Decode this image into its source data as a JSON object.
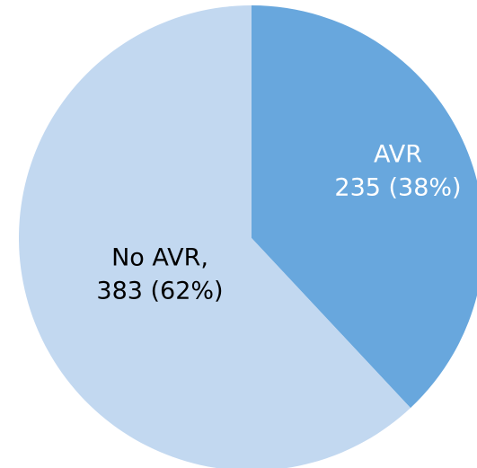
{
  "chart_data": {
    "type": "pie",
    "categories": [
      "AVR",
      "No AVR,"
    ],
    "values": [
      235,
      383
    ],
    "value_labels": [
      "235 (38%)",
      "383 (62%)"
    ],
    "colors": [
      "#68a7dd",
      "#c2d8f0"
    ],
    "label_colors": [
      "#ffffff",
      "#000000"
    ]
  }
}
